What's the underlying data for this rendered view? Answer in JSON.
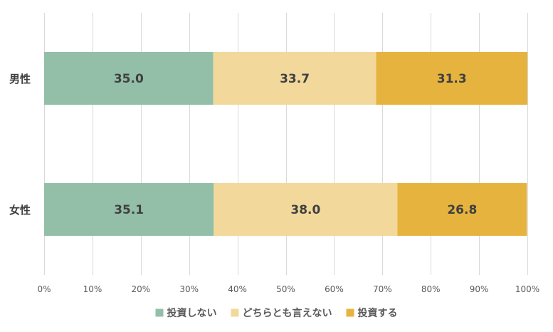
{
  "chart_data": {
    "type": "bar",
    "orientation": "horizontal",
    "stacked": "percent",
    "categories": [
      "男性",
      "女性"
    ],
    "series": [
      {
        "name": "投資しない",
        "values": [
          35.0,
          35.1
        ],
        "color": "#93BFA9"
      },
      {
        "name": "どちらとも言えない",
        "values": [
          33.7,
          38.0
        ],
        "color": "#F2D99B"
      },
      {
        "name": "投資する",
        "values": [
          31.3,
          26.8
        ],
        "color": "#E6B43E"
      }
    ],
    "xlim": [
      0,
      100
    ],
    "xticks": [
      0,
      10,
      20,
      30,
      40,
      50,
      60,
      70,
      80,
      90,
      100
    ],
    "tick_suffix": "%",
    "grid": true,
    "legend_position": "bottom"
  }
}
